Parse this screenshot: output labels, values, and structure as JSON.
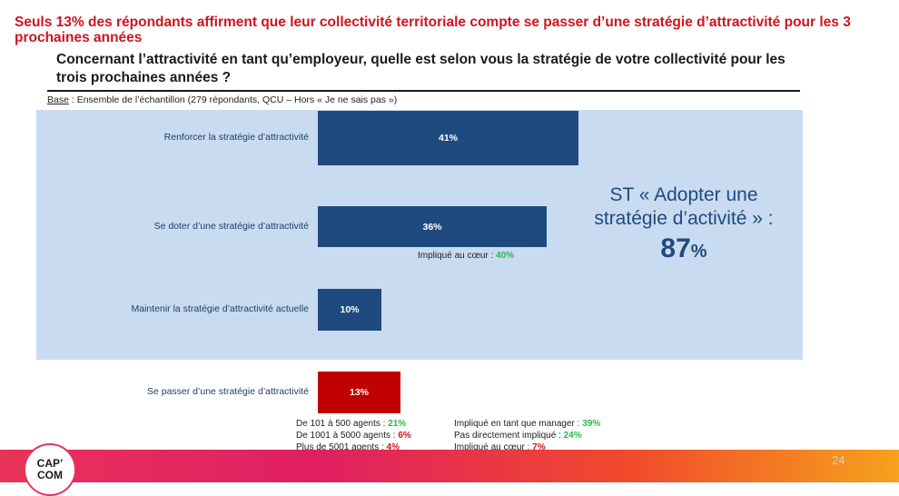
{
  "headline": "Seuls 13% des répondants affirment que leur collectivité territoriale compte se passer d’une stratégie d’attractivité pour les 3 prochaines années",
  "question": "Concernant l’attractivité en tant qu’employeur, quelle est selon vous la stratégie de votre collectivité pour les trois prochaines années ?",
  "base": {
    "label": "Base",
    "text": " : Ensemble de l’échantillon (279 répondants, QCU – Hors « Je ne sais pas »)"
  },
  "summary": {
    "line1": "ST « Adopter une",
    "line2": "stratégie d’activité » :",
    "value": "87",
    "unit": "%"
  },
  "note_36": {
    "label": "Impliqué au cœur : ",
    "value": "40%"
  },
  "notes_left": [
    {
      "label": "De 101 à 500 agents : ",
      "value": "21%",
      "color": "green"
    },
    {
      "label": "De 1001 à 5000 agents : ",
      "value": "6%",
      "color": "red"
    },
    {
      "label": "Plus de 5001 agents : ",
      "value": "4%",
      "color": "red"
    }
  ],
  "notes_right": [
    {
      "label": "Impliqué en tant que manager : ",
      "value": "39%",
      "color": "green"
    },
    {
      "label": "Pas directement impliqué : ",
      "value": "24%",
      "color": "green"
    },
    {
      "label": "Impliqué au cœur : ",
      "value": "7%",
      "color": "red"
    }
  ],
  "logo": {
    "line1": "CAP’",
    "line2": "COM"
  },
  "page_number": "24",
  "colors": {
    "bar_blue": "#1f4a80",
    "bar_red": "#c00000",
    "panel": "#c9dbf0",
    "headline": "#d0141e"
  },
  "chart_data": {
    "type": "bar",
    "orientation": "horizontal",
    "categories": [
      "Renforcer la stratégie d’attractivité",
      "Se doter d’une stratégie d’attractivité",
      "Maintenir la stratégie d’attractivité actuelle",
      "Se passer d’une stratégie d’attractivité"
    ],
    "values": [
      41,
      36,
      10,
      13
    ],
    "labels": [
      "41%",
      "36%",
      "10%",
      "13%"
    ],
    "bar_colors": [
      "#1f4a80",
      "#1f4a80",
      "#1f4a80",
      "#c00000"
    ],
    "unit": "%"
  }
}
